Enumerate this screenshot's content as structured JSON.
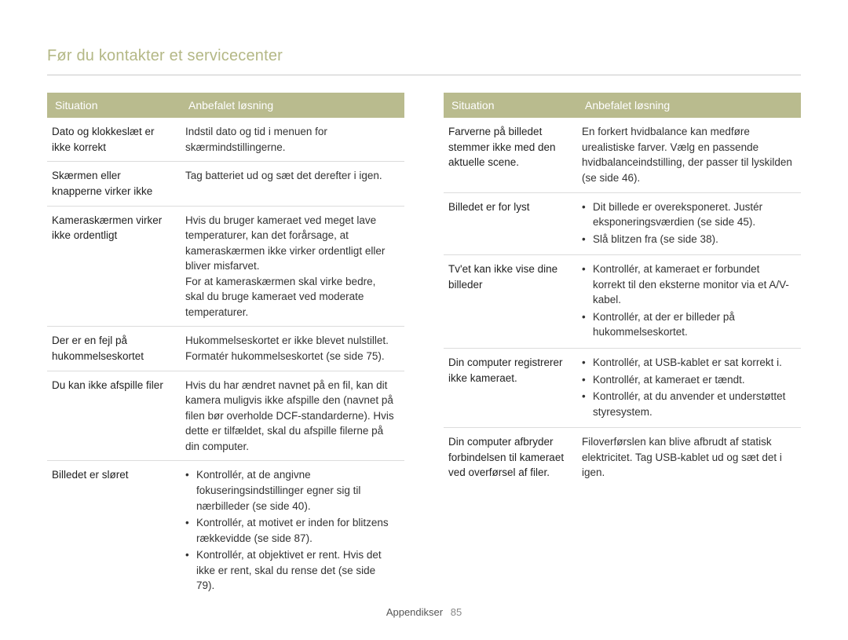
{
  "title": "Før du kontakter et servicecenter",
  "footer": {
    "section": "Appendikser",
    "page": "85"
  },
  "headers": {
    "situation": "Situation",
    "solution": "Anbefalet løsning"
  },
  "left": {
    "rows": [
      {
        "situation": "Dato og klokkeslæt er ikke korrekt",
        "solution": "Indstil dato og tid i menuen for skærmindstillingerne."
      },
      {
        "situation": "Skærmen eller knapperne virker ikke",
        "solution": "Tag batteriet ud og sæt det derefter i igen."
      },
      {
        "situation": "Kameraskærmen virker ikke ordentligt",
        "solution": "Hvis du bruger kameraet ved meget lave temperaturer, kan det forårsage, at kameraskærmen ikke virker ordentligt eller bliver misfarvet.\nFor at kameraskærmen skal virke bedre, skal du bruge kameraet ved moderate temperaturer."
      },
      {
        "situation": "Der er en fejl på hukommelseskortet",
        "solution": "Hukommelseskortet er ikke blevet nulstillet. Formatér hukommelseskortet (se side 75)."
      },
      {
        "situation": "Du kan ikke afspille filer",
        "solution": "Hvis du har ændret navnet på en fil, kan dit kamera muligvis ikke afspille den (navnet på filen bør overholde DCF-standarderne). Hvis dette er tilfældet, skal du afspille filerne på din computer."
      },
      {
        "situation": "Billedet er sløret",
        "bullets": [
          "Kontrollér, at de angivne fokuseringsindstillinger egner sig til nærbilleder (se side 40).",
          "Kontrollér, at motivet er inden for blitzens rækkevidde (se side 87).",
          "Kontrollér, at objektivet er rent. Hvis det ikke er rent, skal du rense det (se side 79)."
        ]
      }
    ]
  },
  "right": {
    "rows": [
      {
        "situation": "Farverne på billedet stemmer ikke med den aktuelle scene.",
        "solution": "En forkert hvidbalance kan medføre urealistiske farver. Vælg en passende hvidbalanceindstilling, der passer til lyskilden (se side 46)."
      },
      {
        "situation": "Billedet er for lyst",
        "bullets": [
          "Dit billede er overeksponeret. Justér eksponeringsværdien (se side 45).",
          "Slå blitzen fra (se side 38)."
        ]
      },
      {
        "situation": "Tv'et kan ikke vise dine billeder",
        "bullets": [
          "Kontrollér, at kameraet er forbundet korrekt til den eksterne monitor via et A/V-kabel.",
          "Kontrollér, at der er billeder på hukommelseskortet."
        ]
      },
      {
        "situation": "Din computer registrerer ikke kameraet.",
        "bullets": [
          "Kontrollér, at USB-kablet er sat korrekt i.",
          "Kontrollér, at kameraet er tændt.",
          "Kontrollér, at du anvender et understøttet styresystem."
        ]
      },
      {
        "situation": "Din computer afbryder forbindelsen til kameraet ved overførsel af filer.",
        "solution": "Filoverførslen kan blive afbrudt af statisk elektricitet. Tag USB-kablet ud og sæt det i igen."
      }
    ]
  }
}
